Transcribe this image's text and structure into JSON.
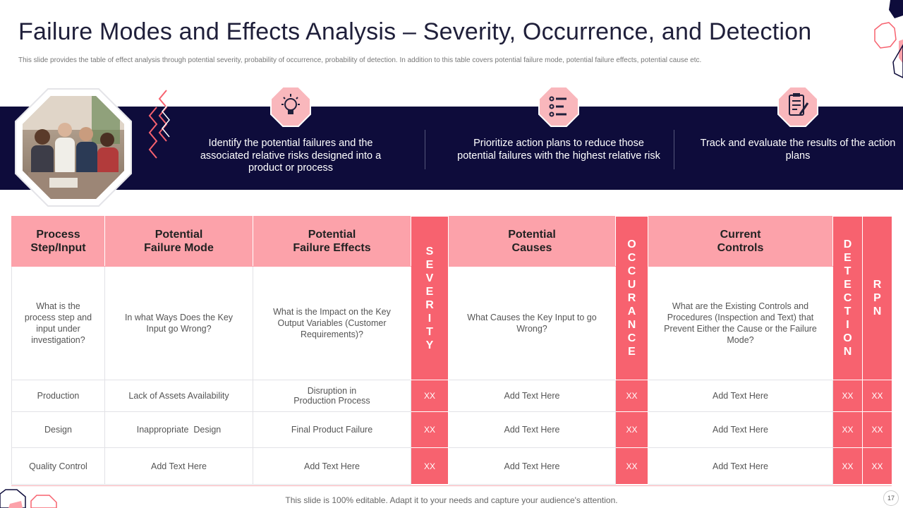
{
  "title": "Failure Modes and Effects Analysis – Severity, Occurrence, and Detection",
  "subtitle": "This slide provides the table of effect analysis through potential severity, probability of occurrence, probability of detection. In addition to this table covers potential failure mode,  potential  failure effects, potential cause etc.",
  "features": [
    {
      "icon": "lightbulb-icon",
      "text": "Identify the potential failures and the associated relative risks designed into a product or process"
    },
    {
      "icon": "checklist-icon",
      "text": "Prioritize action plans to reduce those potential failures with the highest relative risk"
    },
    {
      "icon": "clipboard-icon",
      "text": "Track and evaluate the results of the action plans"
    }
  ],
  "table": {
    "headers": {
      "process": [
        "Process",
        "Step/Input"
      ],
      "failure_mode": [
        "Potential",
        "Failure Mode"
      ],
      "failure_effects": [
        "Potential",
        "Failure Effects"
      ],
      "severity": "SEVERITY",
      "causes": [
        "Potential",
        "Causes"
      ],
      "occurrence": "OCCURANCE",
      "controls": [
        "Current",
        "Controls"
      ],
      "detection": "DETECTION",
      "rpn": "RPN"
    },
    "questions": {
      "process": "What is the process step and input under investigation?",
      "failure_mode": "In what Ways Does the Key Input go Wrong?",
      "failure_effects": "What is the Impact on the Key Output Variables (Customer Requirements)?",
      "causes": "What Causes the Key Input to go Wrong?",
      "controls": "What are the Existing Controls and Procedures (Inspection and Text) that Prevent Either the Cause or the Failure Mode?"
    },
    "rows": [
      {
        "process": "Production",
        "failure_mode": "Lack of Assets Availability",
        "failure_effects": [
          "Disruption in",
          "Production Process"
        ],
        "severity": "XX",
        "causes": "Add Text Here",
        "occurrence": "XX",
        "controls": "Add Text Here",
        "detection": "XX",
        "rpn": "XX"
      },
      {
        "process": "Design",
        "failure_mode": "Inappropriate  Design",
        "failure_effects": [
          "Final Product Failure"
        ],
        "severity": "XX",
        "causes": "Add Text Here",
        "occurrence": "XX",
        "controls": "Add Text Here",
        "detection": "XX",
        "rpn": "XX"
      },
      {
        "process": "Quality Control",
        "failure_mode": "Add Text Here",
        "failure_effects": [
          "Add Text Here"
        ],
        "severity": "XX",
        "causes": "Add Text Here",
        "occurrence": "XX",
        "controls": "Add Text Here",
        "detection": "XX",
        "rpn": "XX"
      }
    ]
  },
  "footer": "This slide is 100% editable. Adapt it to your needs and capture your audience's attention.",
  "page_number": "17",
  "colors": {
    "navy": "#0e0c3b",
    "pink_light": "#fca2aa",
    "pink_strong": "#f7626f",
    "icon_bg": "#f9b7bc"
  }
}
